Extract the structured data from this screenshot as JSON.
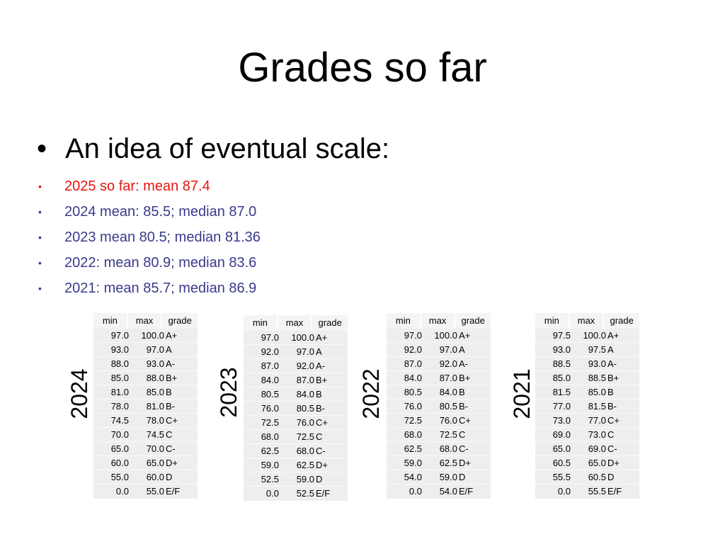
{
  "title": "Grades so far",
  "main_bullet": "An idea of eventual scale:",
  "sub_bullets": [
    {
      "text": "2025 so far: mean 87.4",
      "color": "#e8140f"
    },
    {
      "text": "2024 mean: 85.5; median 87.0",
      "color": "#3a3a8c"
    },
    {
      "text": "2023 mean 80.5; median 81.36",
      "color": "#3a3a8c"
    },
    {
      "text": "2022: mean 80.9; median 83.6",
      "color": "#3a3a8c"
    },
    {
      "text": "2021: mean 85.7; median 86.9",
      "color": "#3a3a8c"
    }
  ],
  "bullet_glyph": "•",
  "headers": {
    "min": "min",
    "max": "max",
    "grade": "grade"
  },
  "tables": [
    {
      "year": "2024",
      "rows": [
        [
          "97.0",
          "100.0",
          "A+"
        ],
        [
          "93.0",
          "97.0",
          "A"
        ],
        [
          "88.0",
          "93.0",
          "A-"
        ],
        [
          "85.0",
          "88.0",
          "B+"
        ],
        [
          "81.0",
          "85.0",
          "B"
        ],
        [
          "78.0",
          "81.0",
          "B-"
        ],
        [
          "74.5",
          "78.0",
          "C+"
        ],
        [
          "70.0",
          "74.5",
          "C"
        ],
        [
          "65.0",
          "70.0",
          "C-"
        ],
        [
          "60.0",
          "65.0",
          "D+"
        ],
        [
          "55.0",
          "60.0",
          "D"
        ],
        [
          "0.0",
          "55.0",
          "E/F"
        ]
      ]
    },
    {
      "year": "2023",
      "rows": [
        [
          "97.0",
          "100.0",
          "A+"
        ],
        [
          "92.0",
          "97.0",
          "A"
        ],
        [
          "87.0",
          "92.0",
          "A-"
        ],
        [
          "84.0",
          "87.0",
          "B+"
        ],
        [
          "80.5",
          "84.0",
          "B"
        ],
        [
          "76.0",
          "80.5",
          "B-"
        ],
        [
          "72.5",
          "76.0",
          "C+"
        ],
        [
          "68.0",
          "72.5",
          "C"
        ],
        [
          "62.5",
          "68.0",
          "C-"
        ],
        [
          "59.0",
          "62.5",
          "D+"
        ],
        [
          "52.5",
          "59.0",
          "D"
        ],
        [
          "0.0",
          "52.5",
          "E/F"
        ]
      ]
    },
    {
      "year": "2022",
      "rows": [
        [
          "97.0",
          "100.0",
          "A+"
        ],
        [
          "92.0",
          "97.0",
          "A"
        ],
        [
          "87.0",
          "92.0",
          "A-"
        ],
        [
          "84.0",
          "87.0",
          "B+"
        ],
        [
          "80.5",
          "84.0",
          "B"
        ],
        [
          "76.0",
          "80.5",
          "B-"
        ],
        [
          "72.5",
          "76.0",
          "C+"
        ],
        [
          "68.0",
          "72.5",
          "C"
        ],
        [
          "62.5",
          "68.0",
          "C-"
        ],
        [
          "59.0",
          "62.5",
          "D+"
        ],
        [
          "54.0",
          "59.0",
          "D"
        ],
        [
          "0.0",
          "54.0",
          "E/F"
        ]
      ]
    },
    {
      "year": "2021",
      "rows": [
        [
          "97.5",
          "100.0",
          "A+"
        ],
        [
          "93.0",
          "97.5",
          "A"
        ],
        [
          "88.5",
          "93.0",
          "A-"
        ],
        [
          "85.0",
          "88.5",
          "B+"
        ],
        [
          "81.5",
          "85.0",
          "B"
        ],
        [
          "77.0",
          "81.5",
          "B-"
        ],
        [
          "73.0",
          "77.0",
          "C+"
        ],
        [
          "69.0",
          "73.0",
          "C"
        ],
        [
          "65.0",
          "69.0",
          "C-"
        ],
        [
          "60.5",
          "65.0",
          "D+"
        ],
        [
          "55.5",
          "60.5",
          "D"
        ],
        [
          "0.0",
          "55.5",
          "E/F"
        ]
      ]
    }
  ]
}
